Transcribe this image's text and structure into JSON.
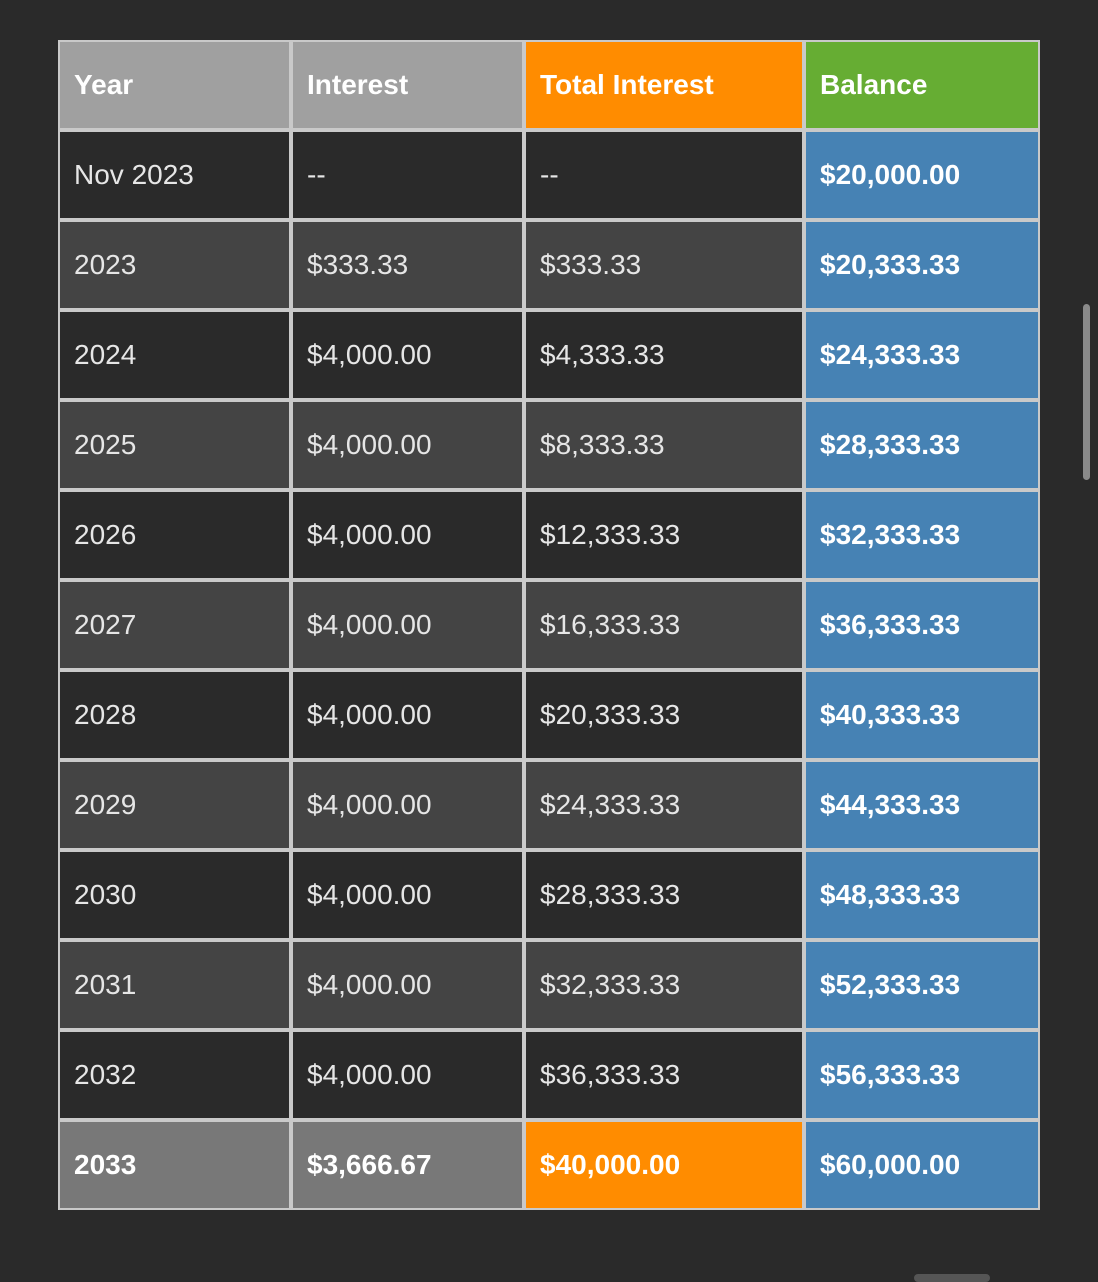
{
  "table": {
    "headers": {
      "year": "Year",
      "interest": "Interest",
      "total_interest": "Total Interest",
      "balance": "Balance"
    },
    "rows": [
      {
        "year": "Nov 2023",
        "interest": "--",
        "total_interest": "--",
        "balance": "$20,000.00"
      },
      {
        "year": "2023",
        "interest": "$333.33",
        "total_interest": "$333.33",
        "balance": "$20,333.33"
      },
      {
        "year": "2024",
        "interest": "$4,000.00",
        "total_interest": "$4,333.33",
        "balance": "$24,333.33"
      },
      {
        "year": "2025",
        "interest": "$4,000.00",
        "total_interest": "$8,333.33",
        "balance": "$28,333.33"
      },
      {
        "year": "2026",
        "interest": "$4,000.00",
        "total_interest": "$12,333.33",
        "balance": "$32,333.33"
      },
      {
        "year": "2027",
        "interest": "$4,000.00",
        "total_interest": "$16,333.33",
        "balance": "$36,333.33"
      },
      {
        "year": "2028",
        "interest": "$4,000.00",
        "total_interest": "$20,333.33",
        "balance": "$40,333.33"
      },
      {
        "year": "2029",
        "interest": "$4,000.00",
        "total_interest": "$24,333.33",
        "balance": "$44,333.33"
      },
      {
        "year": "2030",
        "interest": "$4,000.00",
        "total_interest": "$28,333.33",
        "balance": "$48,333.33"
      },
      {
        "year": "2031",
        "interest": "$4,000.00",
        "total_interest": "$32,333.33",
        "balance": "$52,333.33"
      },
      {
        "year": "2032",
        "interest": "$4,000.00",
        "total_interest": "$36,333.33",
        "balance": "$56,333.33"
      }
    ],
    "final_row": {
      "year": "2033",
      "interest": "$3,666.67",
      "total_interest": "$40,000.00",
      "balance": "$60,000.00"
    }
  },
  "colors": {
    "background": "#2a2a2a",
    "header_grey": "#a0a0a0",
    "accent_orange": "#ff8c00",
    "accent_green": "#66ad33",
    "balance_blue": "#4682b4",
    "row_dark": "#2a2a2a",
    "row_mid": "#444444",
    "final_row_grey": "#787878"
  }
}
